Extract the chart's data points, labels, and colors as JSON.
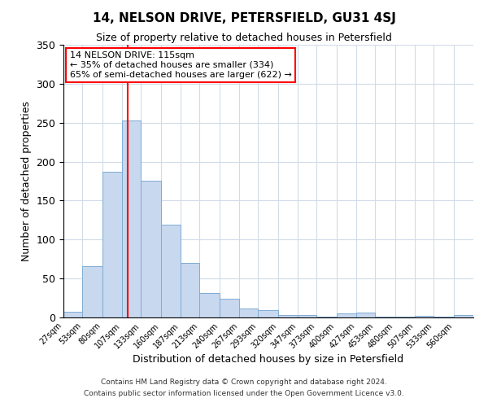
{
  "title": "14, NELSON DRIVE, PETERSFIELD, GU31 4SJ",
  "subtitle": "Size of property relative to detached houses in Petersfield",
  "xlabel": "Distribution of detached houses by size in Petersfield",
  "ylabel": "Number of detached properties",
  "bar_color": "#c8d8ee",
  "bar_edge_color": "#7fadd4",
  "bin_labels": [
    "27sqm",
    "53sqm",
    "80sqm",
    "107sqm",
    "133sqm",
    "160sqm",
    "187sqm",
    "213sqm",
    "240sqm",
    "267sqm",
    "293sqm",
    "320sqm",
    "347sqm",
    "373sqm",
    "400sqm",
    "427sqm",
    "453sqm",
    "480sqm",
    "507sqm",
    "533sqm",
    "560sqm"
  ],
  "bar_heights": [
    7,
    66,
    187,
    253,
    176,
    119,
    70,
    31,
    24,
    11,
    9,
    3,
    3,
    1,
    5,
    6,
    1,
    1,
    2,
    1,
    3
  ],
  "ylim": [
    0,
    350
  ],
  "yticks": [
    0,
    50,
    100,
    150,
    200,
    250,
    300,
    350
  ],
  "property_line_x": 115,
  "annotation_title": "14 NELSON DRIVE: 115sqm",
  "annotation_line1": "← 35% of detached houses are smaller (334)",
  "annotation_line2": "65% of semi-detached houses are larger (622) →",
  "footnote1": "Contains HM Land Registry data © Crown copyright and database right 2024.",
  "footnote2": "Contains public sector information licensed under the Open Government Licence v3.0.",
  "background_color": "#ffffff",
  "grid_color": "#d0dce8",
  "bin_edges": [
    27,
    53,
    80,
    107,
    133,
    160,
    187,
    213,
    240,
    267,
    293,
    320,
    347,
    373,
    400,
    427,
    453,
    480,
    507,
    533,
    560,
    587
  ]
}
